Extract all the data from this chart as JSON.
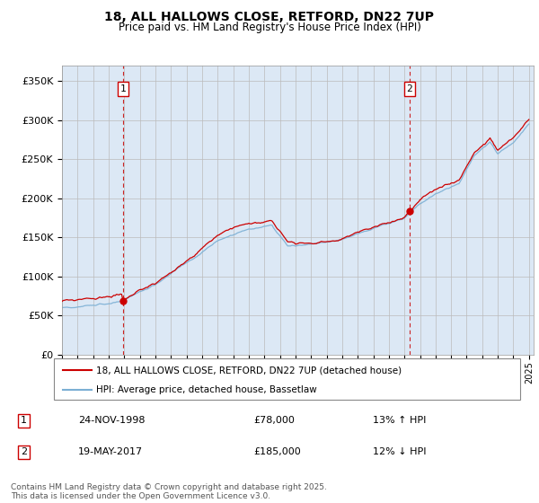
{
  "title_line1": "18, ALL HALLOWS CLOSE, RETFORD, DN22 7UP",
  "title_line2": "Price paid vs. HM Land Registry's House Price Index (HPI)",
  "legend_label1": "18, ALL HALLOWS CLOSE, RETFORD, DN22 7UP (detached house)",
  "legend_label2": "HPI: Average price, detached house, Bassetlaw",
  "marker1_date": "24-NOV-1998",
  "marker1_price": "£78,000",
  "marker1_hpi": "13% ↑ HPI",
  "marker2_date": "19-MAY-2017",
  "marker2_price": "£185,000",
  "marker2_hpi": "12% ↓ HPI",
  "footer": "Contains HM Land Registry data © Crown copyright and database right 2025.\nThis data is licensed under the Open Government Licence v3.0.",
  "line1_color": "#cc0000",
  "line2_color": "#7bafd4",
  "plot_bg_color": "#dce8f5",
  "marker_box_color": "#cc0000",
  "vline_color": "#cc2222",
  "ylim": [
    0,
    370000
  ],
  "ylabel_ticks": [
    0,
    50000,
    100000,
    150000,
    200000,
    250000,
    300000,
    350000
  ],
  "ylabel_labels": [
    "£0",
    "£50K",
    "£100K",
    "£150K",
    "£200K",
    "£250K",
    "£300K",
    "£350K"
  ],
  "background_color": "#ffffff",
  "grid_color": "#bbbbbb",
  "purchase1_year": 1998.9,
  "purchase1_price": 78000,
  "purchase2_year": 2017.37,
  "purchase2_price": 185000
}
